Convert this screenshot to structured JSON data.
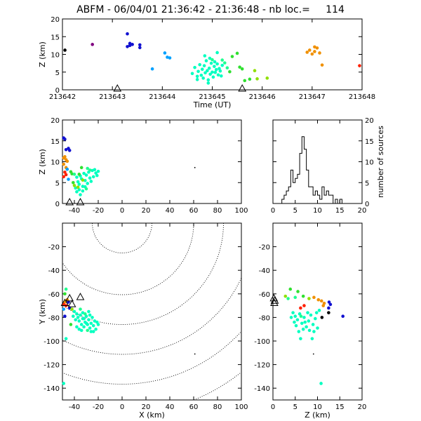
{
  "title": "ABFM - 06/04/01 21:36:42 - 21:36:48 - nb loc.=     114",
  "colors": {
    "purple": "#800080",
    "blue": "#1010d0",
    "lightblue": "#00a0ff",
    "cyan": "#00ffc0",
    "mint": "#20ff90",
    "green": "#30e030",
    "yellowgreen": "#90e000",
    "orange": "#f09000",
    "red": "#ff2000",
    "black": "#000000"
  },
  "chart_data": [
    {
      "id": "time-height",
      "type": "scatter",
      "xlabel": "Time (UT)",
      "ylabel": "Z (km)",
      "xlim": [
        213642,
        213648
      ],
      "ylim": [
        0,
        20
      ],
      "xticks": [
        "213642",
        "213643",
        "213644",
        "213645",
        "213646",
        "213647",
        "213648"
      ],
      "yticks": [
        "0",
        "5",
        "10",
        "15",
        "20"
      ],
      "stations": [
        213643.1,
        213645.6
      ],
      "points": [
        [
          213642.05,
          11.2,
          "black"
        ],
        [
          213642.6,
          12.8,
          "purple"
        ],
        [
          213643.3,
          15.8,
          "blue"
        ],
        [
          213643.35,
          12.5,
          "blue"
        ],
        [
          213643.4,
          12.8,
          "blue"
        ],
        [
          213643.35,
          13.1,
          "blue"
        ],
        [
          213643.55,
          12.7,
          "blue"
        ],
        [
          213643.55,
          11.9,
          "blue"
        ],
        [
          213643.3,
          12.2,
          "blue"
        ],
        [
          213643.8,
          5.9,
          "lightblue"
        ],
        [
          213644.05,
          10.4,
          "lightblue"
        ],
        [
          213644.1,
          9.2,
          "lightblue"
        ],
        [
          213644.15,
          9.0,
          "lightblue"
        ],
        [
          213644.6,
          4.6,
          "cyan"
        ],
        [
          213644.65,
          6.3,
          "cyan"
        ],
        [
          213644.7,
          3.8,
          "cyan"
        ],
        [
          213644.72,
          5.2,
          "cyan"
        ],
        [
          213644.75,
          7.1,
          "cyan"
        ],
        [
          213644.78,
          4.1,
          "cyan"
        ],
        [
          213644.8,
          5.8,
          "cyan"
        ],
        [
          213644.82,
          3.3,
          "cyan"
        ],
        [
          213644.84,
          6.8,
          "cyan"
        ],
        [
          213644.86,
          4.8,
          "cyan"
        ],
        [
          213644.88,
          8.2,
          "cyan"
        ],
        [
          213644.9,
          5.4,
          "cyan"
        ],
        [
          213644.92,
          2.8,
          "cyan"
        ],
        [
          213644.94,
          6.1,
          "cyan"
        ],
        [
          213644.96,
          4.4,
          "cyan"
        ],
        [
          213644.98,
          7.5,
          "cyan"
        ],
        [
          213645.0,
          5.0,
          "cyan"
        ],
        [
          213645.02,
          3.6,
          "cyan"
        ],
        [
          213645.04,
          6.6,
          "cyan"
        ],
        [
          213645.06,
          4.9,
          "cyan"
        ],
        [
          213645.08,
          5.7,
          "cyan"
        ],
        [
          213645.1,
          7.3,
          "cyan"
        ],
        [
          213645.12,
          4.2,
          "cyan"
        ],
        [
          213645.14,
          6.0,
          "cyan"
        ],
        [
          213645.16,
          5.3,
          "cyan"
        ],
        [
          213645.18,
          3.9,
          "cyan"
        ],
        [
          213645.2,
          6.9,
          "cyan"
        ],
        [
          213644.85,
          9.6,
          "cyan"
        ],
        [
          213645.1,
          10.5,
          "cyan"
        ],
        [
          213644.95,
          8.9,
          "cyan"
        ],
        [
          213645.05,
          7.9,
          "cyan"
        ],
        [
          213644.7,
          2.9,
          "cyan"
        ],
        [
          213644.92,
          1.9,
          "cyan"
        ],
        [
          213645.0,
          8.5,
          "mint"
        ],
        [
          213645.2,
          8.4,
          "mint"
        ],
        [
          213645.25,
          7.6,
          "mint"
        ],
        [
          213645.3,
          6.2,
          "mint"
        ],
        [
          213645.35,
          5.1,
          "green"
        ],
        [
          213645.4,
          9.4,
          "green"
        ],
        [
          213645.5,
          10.3,
          "green"
        ],
        [
          213645.55,
          6.4,
          "green"
        ],
        [
          213645.6,
          5.9,
          "green"
        ],
        [
          213645.65,
          2.6,
          "green"
        ],
        [
          213645.75,
          3.0,
          "green"
        ],
        [
          213645.85,
          5.4,
          "yellowgreen"
        ],
        [
          213645.9,
          3.1,
          "yellowgreen"
        ],
        [
          213646.1,
          3.3,
          "yellowgreen"
        ],
        [
          213646.9,
          10.6,
          "orange"
        ],
        [
          213646.95,
          11.2,
          "orange"
        ],
        [
          213647.0,
          10.1,
          "orange"
        ],
        [
          213647.05,
          10.8,
          "orange"
        ],
        [
          213647.1,
          11.8,
          "orange"
        ],
        [
          213647.05,
          12.1,
          "orange"
        ],
        [
          213647.15,
          10.4,
          "orange"
        ],
        [
          213647.2,
          7.0,
          "orange"
        ],
        [
          213647.95,
          6.8,
          "red"
        ]
      ]
    },
    {
      "id": "x-height",
      "type": "scatter",
      "xlabel": "",
      "ylabel": "Z (km)",
      "xlim": [
        -50,
        100
      ],
      "ylim": [
        0,
        20
      ],
      "xticks": [
        "-40",
        "-20",
        "0",
        "20",
        "40",
        "60",
        "80",
        "100"
      ],
      "yticks": [
        "0",
        "5",
        "10",
        "15",
        "20"
      ],
      "stations": [
        -44,
        -35
      ],
      "points": [
        [
          -49,
          15.7,
          "blue"
        ],
        [
          -48,
          15.4,
          "blue"
        ],
        [
          -47,
          12.9,
          "blue"
        ],
        [
          -45,
          13.2,
          "blue"
        ],
        [
          -44,
          12.7,
          "blue"
        ],
        [
          -48,
          11.2,
          "orange"
        ],
        [
          -47,
          10.5,
          "orange"
        ],
        [
          -49,
          10.9,
          "orange"
        ],
        [
          -46,
          10.1,
          "orange"
        ],
        [
          -49,
          9.4,
          "orange"
        ],
        [
          -47,
          8.6,
          "orange"
        ],
        [
          -48,
          7.5,
          "red"
        ],
        [
          -47,
          6.9,
          "red"
        ],
        [
          -49,
          6.4,
          "red"
        ],
        [
          -45,
          5.8,
          "lightblue"
        ],
        [
          -46,
          8.2,
          "lightblue"
        ],
        [
          -43,
          7.6,
          "green"
        ],
        [
          -42,
          7.1,
          "green"
        ],
        [
          -40,
          7.0,
          "mint"
        ],
        [
          -38,
          6.3,
          "cyan"
        ],
        [
          -37,
          5.2,
          "cyan"
        ],
        [
          -36,
          4.6,
          "cyan"
        ],
        [
          -35,
          6.6,
          "cyan"
        ],
        [
          -34,
          5.9,
          "cyan"
        ],
        [
          -33,
          4.1,
          "cyan"
        ],
        [
          -32,
          7.2,
          "cyan"
        ],
        [
          -31,
          5.5,
          "cyan"
        ],
        [
          -30,
          6.8,
          "cyan"
        ],
        [
          -29,
          4.8,
          "cyan"
        ],
        [
          -28,
          7.5,
          "cyan"
        ],
        [
          -27,
          6.1,
          "cyan"
        ],
        [
          -26,
          5.3,
          "cyan"
        ],
        [
          -25,
          7.9,
          "cyan"
        ],
        [
          -24,
          6.4,
          "cyan"
        ],
        [
          -23,
          8.1,
          "cyan"
        ],
        [
          -22,
          7.3,
          "cyan"
        ],
        [
          -21,
          6.7,
          "cyan"
        ],
        [
          -20,
          7.7,
          "cyan"
        ],
        [
          -39,
          3.7,
          "cyan"
        ],
        [
          -38,
          2.8,
          "cyan"
        ],
        [
          -36,
          3.3,
          "cyan"
        ],
        [
          -35,
          2.1,
          "cyan"
        ],
        [
          -33,
          3.0,
          "cyan"
        ],
        [
          -31,
          4.0,
          "cyan"
        ],
        [
          -30,
          3.5,
          "mint"
        ],
        [
          -29,
          8.4,
          "mint"
        ],
        [
          -27,
          8.0,
          "mint"
        ],
        [
          -40,
          4.3,
          "yellowgreen"
        ],
        [
          -37,
          3.9,
          "yellowgreen"
        ],
        [
          -34,
          8.6,
          "green"
        ],
        [
          -36,
          7.0,
          "green"
        ],
        [
          -33,
          5.6,
          "yellowgreen"
        ],
        [
          -41,
          5.0,
          "green"
        ],
        [
          61,
          8.6,
          "black"
        ]
      ]
    },
    {
      "id": "height-histogram",
      "type": "histogram",
      "xlabel": "",
      "ylabel": "number of sources",
      "xlim": [
        0,
        20
      ],
      "ylim": [
        0,
        20
      ],
      "xticks": [
        "0",
        "5",
        "10",
        "15",
        "20"
      ],
      "yticks": [
        "0",
        "5",
        "10",
        "15",
        "20"
      ],
      "bin_width": 0.5,
      "bins_start": 2,
      "counts": [
        1,
        2,
        3,
        4,
        8,
        5,
        6,
        7,
        12,
        16,
        13,
        8,
        4,
        4,
        2,
        3,
        2,
        1,
        4,
        2,
        3,
        2,
        2,
        0,
        1,
        0,
        1,
        0,
        0
      ]
    },
    {
      "id": "plan-view",
      "type": "scatter",
      "xlabel": "X (km)",
      "ylabel": "Y (km)",
      "xlim": [
        -50,
        100
      ],
      "ylim": [
        -150,
        0
      ],
      "xticks": [
        "-40",
        "-20",
        "0",
        "20",
        "40",
        "60",
        "80",
        "100"
      ],
      "yticks": [
        "-140",
        "-120",
        "-100",
        "-80",
        "-60",
        "-40",
        "-20"
      ],
      "range_rings": [
        25,
        60,
        85,
        110,
        135,
        160
      ],
      "ring_center": [
        0,
        0
      ],
      "stations": [
        [
          -44,
          -63
        ],
        [
          -35,
          -62
        ],
        [
          -48,
          -67
        ],
        [
          -42,
          -68
        ]
      ],
      "points": [
        [
          -47,
          -56,
          "mint"
        ],
        [
          -48,
          -60,
          "green"
        ],
        [
          -46,
          -65,
          "orange"
        ],
        [
          -48,
          -67,
          "orange"
        ],
        [
          -49,
          -69,
          "red"
        ],
        [
          -47,
          -70,
          "red"
        ],
        [
          -45,
          -67,
          "blue"
        ],
        [
          -44,
          -72,
          "blue"
        ],
        [
          -48,
          -79,
          "blue"
        ],
        [
          -49,
          -73,
          "lightblue"
        ],
        [
          -42,
          -73,
          "yellowgreen"
        ],
        [
          -40,
          -75,
          "cyan"
        ],
        [
          -38,
          -77,
          "cyan"
        ],
        [
          -37,
          -80,
          "cyan"
        ],
        [
          -36,
          -83,
          "cyan"
        ],
        [
          -35,
          -78,
          "cyan"
        ],
        [
          -34,
          -86,
          "cyan"
        ],
        [
          -33,
          -81,
          "cyan"
        ],
        [
          -32,
          -88,
          "cyan"
        ],
        [
          -31,
          -84,
          "cyan"
        ],
        [
          -30,
          -79,
          "cyan"
        ],
        [
          -29,
          -86,
          "cyan"
        ],
        [
          -28,
          -82,
          "cyan"
        ],
        [
          -27,
          -89,
          "cyan"
        ],
        [
          -26,
          -85,
          "cyan"
        ],
        [
          -25,
          -80,
          "cyan"
        ],
        [
          -24,
          -87,
          "cyan"
        ],
        [
          -23,
          -83,
          "cyan"
        ],
        [
          -22,
          -90,
          "cyan"
        ],
        [
          -21,
          -84,
          "cyan"
        ],
        [
          -20,
          -86,
          "cyan"
        ],
        [
          -39,
          -82,
          "cyan"
        ],
        [
          -38,
          -88,
          "cyan"
        ],
        [
          -36,
          -90,
          "cyan"
        ],
        [
          -34,
          -91,
          "cyan"
        ],
        [
          -33,
          -76,
          "cyan"
        ],
        [
          -31,
          -77,
          "mint"
        ],
        [
          -29,
          -91,
          "mint"
        ],
        [
          -27,
          -78,
          "cyan"
        ],
        [
          -41,
          -79,
          "cyan"
        ],
        [
          -43,
          -86,
          "green"
        ],
        [
          -35,
          -73,
          "mint"
        ],
        [
          -24,
          -92,
          "cyan"
        ],
        [
          -28,
          -75,
          "cyan"
        ],
        [
          -26,
          -92,
          "cyan"
        ],
        [
          -47,
          -98,
          "cyan"
        ],
        [
          -49,
          -136,
          "cyan"
        ],
        [
          -32,
          -81,
          "cyan"
        ],
        [
          -30,
          -85,
          "cyan"
        ],
        [
          61,
          -111,
          "black"
        ]
      ]
    },
    {
      "id": "z-y-view",
      "type": "scatter",
      "xlabel": "Z (km)",
      "ylabel": "",
      "xlim": [
        0,
        20
      ],
      "ylim": [
        -150,
        0
      ],
      "xticks": [
        "0",
        "5",
        "10",
        "15",
        "20"
      ],
      "yticks": [
        "-140",
        "-120",
        "-100",
        "-80",
        "-60",
        "-40",
        "-20"
      ],
      "stations": [
        [
          0.2,
          -63
        ],
        [
          0.4,
          -65
        ],
        [
          0.3,
          -67
        ]
      ],
      "points": [
        [
          3.9,
          -56,
          "green"
        ],
        [
          5.6,
          -58,
          "green"
        ],
        [
          2.8,
          -62,
          "yellowgreen"
        ],
        [
          3.4,
          -64,
          "mint"
        ],
        [
          5.0,
          -63,
          "mint"
        ],
        [
          6.8,
          -62,
          "green"
        ],
        [
          8.1,
          -64,
          "yellowgreen"
        ],
        [
          9.2,
          -63,
          "orange"
        ],
        [
          10.2,
          -65,
          "orange"
        ],
        [
          10.9,
          -66,
          "orange"
        ],
        [
          11.5,
          -68,
          "orange"
        ],
        [
          12.6,
          -67,
          "blue"
        ],
        [
          12.9,
          -69,
          "blue"
        ],
        [
          12.5,
          -72,
          "blue"
        ],
        [
          15.7,
          -79,
          "blue"
        ],
        [
          11.3,
          -70,
          "orange"
        ],
        [
          7.0,
          -70,
          "red"
        ],
        [
          6.2,
          -72,
          "red"
        ],
        [
          11.0,
          -80,
          "black"
        ],
        [
          12.5,
          -76,
          "black"
        ],
        [
          4.5,
          -76,
          "cyan"
        ],
        [
          5.0,
          -79,
          "cyan"
        ],
        [
          5.5,
          -82,
          "cyan"
        ],
        [
          6.0,
          -77,
          "cyan"
        ],
        [
          6.5,
          -85,
          "cyan"
        ],
        [
          7.0,
          -80,
          "cyan"
        ],
        [
          7.5,
          -88,
          "cyan"
        ],
        [
          8.0,
          -83,
          "cyan"
        ],
        [
          8.5,
          -78,
          "cyan"
        ],
        [
          9.0,
          -86,
          "cyan"
        ],
        [
          9.5,
          -81,
          "cyan"
        ],
        [
          10.0,
          -89,
          "cyan"
        ],
        [
          5.2,
          -87,
          "cyan"
        ],
        [
          6.8,
          -90,
          "cyan"
        ],
        [
          8.2,
          -91,
          "cyan"
        ],
        [
          7.8,
          -76,
          "cyan"
        ],
        [
          9.8,
          -76,
          "cyan"
        ],
        [
          4.8,
          -84,
          "cyan"
        ],
        [
          6.3,
          -79,
          "mint"
        ],
        [
          7.2,
          -84,
          "cyan"
        ],
        [
          9.2,
          -92,
          "cyan"
        ],
        [
          5.8,
          -92,
          "cyan"
        ],
        [
          8.8,
          -98,
          "cyan"
        ],
        [
          6.2,
          -98,
          "cyan"
        ],
        [
          10.8,
          -136,
          "cyan"
        ],
        [
          9.1,
          -111,
          "black"
        ],
        [
          10.4,
          -74,
          "cyan"
        ],
        [
          4.1,
          -80,
          "cyan"
        ]
      ]
    }
  ]
}
